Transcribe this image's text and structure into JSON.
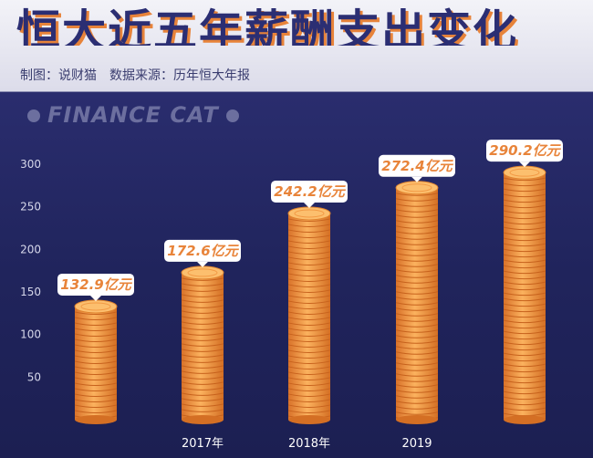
{
  "header": {
    "title": "恒大近五年薪酬支出变化",
    "credit": "制图：说财猫",
    "source": "数据来源：历年恒大年报",
    "brand": "FINANCE CAT"
  },
  "colors": {
    "background": "#20245c",
    "coin": "#f0953c",
    "coin_edge": "#d46f24",
    "value_text": "#e8843a"
  },
  "chart_data": {
    "type": "bar",
    "categories": [
      "",
      "2017年",
      "2018年",
      "2019",
      ""
    ],
    "values": [
      132.9,
      172.6,
      242.2,
      272.4,
      290.2
    ],
    "value_labels": [
      "132.9亿元",
      "172.6亿元",
      "242.2亿元",
      "272.4亿元",
      "290.2亿元"
    ],
    "yticks": [
      50,
      100,
      150,
      200,
      250,
      300
    ],
    "ylim": [
      0,
      320
    ],
    "title": "恒大近五年薪酬支出变化",
    "xlabel": "",
    "ylabel": "",
    "grid": false,
    "legend": "none"
  }
}
